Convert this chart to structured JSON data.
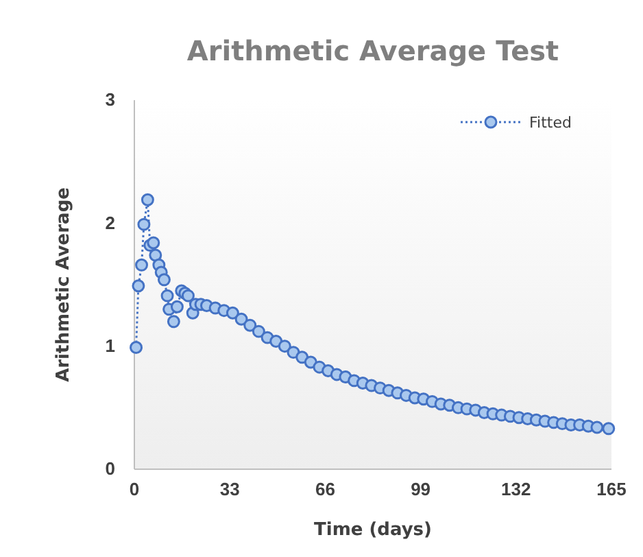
{
  "chart_data": {
    "type": "line",
    "title": "Arithmetic Average Test",
    "xlabel": "Time (days)",
    "ylabel": "Arithmetic Average",
    "xlim": [
      0,
      165
    ],
    "xticks": [
      0,
      33,
      66,
      99,
      132,
      165
    ],
    "ylim": [
      0,
      3
    ],
    "yticks": [
      0,
      1,
      2,
      3
    ],
    "legend": "top right",
    "marker": "circle",
    "line_style": "dotted",
    "grid": false,
    "series": [
      {
        "name": "Fitted",
        "color": "#4472c4",
        "x": [
          0.6,
          1.4,
          2.5,
          3.3,
          4.6,
          5.4,
          6.6,
          7.3,
          8.5,
          9.3,
          10.3,
          11.4,
          12,
          13.6,
          14.8,
          16.3,
          17.5,
          18.6,
          20.2,
          21.2,
          23,
          25,
          28,
          31,
          34,
          37,
          40,
          43,
          46,
          49,
          52,
          55,
          58,
          61,
          64,
          67,
          70,
          73,
          76,
          79,
          82,
          85,
          88,
          91,
          94,
          97,
          100,
          103,
          106,
          109,
          112,
          115,
          118,
          121,
          124,
          127,
          130,
          133,
          136,
          139,
          142,
          145,
          148,
          151,
          154,
          157,
          160,
          164
        ],
        "values": [
          0.99,
          1.49,
          1.66,
          1.99,
          2.19,
          1.82,
          1.84,
          1.74,
          1.66,
          1.6,
          1.54,
          1.41,
          1.3,
          1.2,
          1.32,
          1.45,
          1.43,
          1.41,
          1.27,
          1.34,
          1.34,
          1.33,
          1.31,
          1.29,
          1.27,
          1.22,
          1.17,
          1.12,
          1.07,
          1.04,
          1.0,
          0.95,
          0.91,
          0.87,
          0.83,
          0.8,
          0.77,
          0.75,
          0.72,
          0.7,
          0.68,
          0.66,
          0.64,
          0.62,
          0.6,
          0.58,
          0.57,
          0.55,
          0.53,
          0.52,
          0.5,
          0.49,
          0.48,
          0.46,
          0.45,
          0.44,
          0.43,
          0.42,
          0.41,
          0.4,
          0.39,
          0.38,
          0.37,
          0.36,
          0.36,
          0.35,
          0.34,
          0.33
        ]
      }
    ]
  }
}
